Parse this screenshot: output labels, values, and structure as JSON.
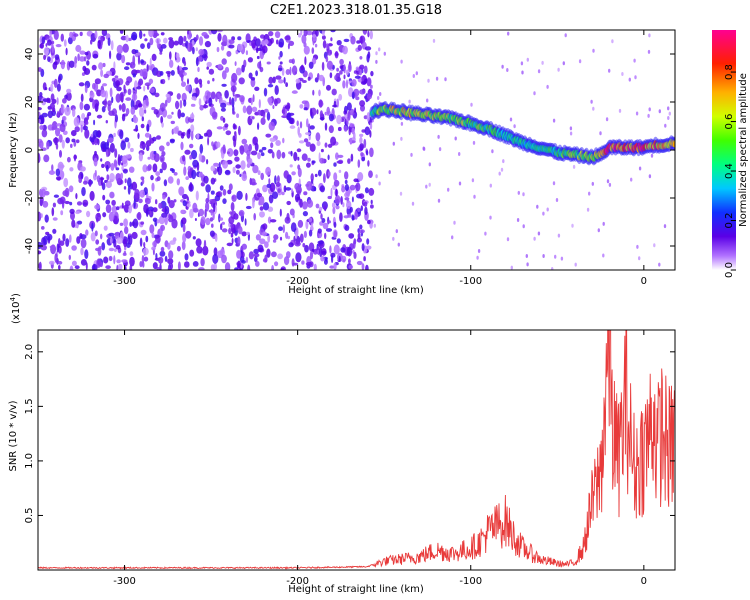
{
  "figure_title": "C2E1.2023.318.01.35.G18",
  "chart_data": [
    {
      "type": "heatmap",
      "xlabel": "Height of straight line (km)",
      "ylabel": "Frequency (Hz)",
      "xlim": [
        -350,
        18
      ],
      "ylim": [
        -50,
        50
      ],
      "xticks": [
        -300,
        -200,
        -100,
        0
      ],
      "yticks": [
        -40,
        -20,
        0,
        20,
        40
      ],
      "colorbar": {
        "label": "Normalized spectral amplitude",
        "range": [
          0,
          0.97
        ],
        "ticks": [
          0.0,
          0.2,
          0.4,
          0.6,
          0.8
        ]
      },
      "noise_region_x": [
        -350,
        -157
      ],
      "ridge": {
        "x": [
          -157,
          -150,
          -140,
          -130,
          -120,
          -110,
          -100,
          -90,
          -80,
          -70,
          -60,
          -50,
          -40,
          -30,
          -25,
          -20,
          -15,
          -10,
          -5,
          0,
          5,
          10,
          18
        ],
        "frequency": [
          16,
          17,
          16,
          15,
          14,
          13,
          11,
          9,
          6,
          3,
          1,
          -1,
          -2,
          -3,
          -2,
          1,
          1,
          1,
          1,
          1,
          2,
          2,
          3
        ],
        "amplitude": [
          0.5,
          0.6,
          0.7,
          0.6,
          0.65,
          0.6,
          0.55,
          0.5,
          0.45,
          0.4,
          0.4,
          0.5,
          0.55,
          0.6,
          0.7,
          0.9,
          0.85,
          0.8,
          0.85,
          0.9,
          0.8,
          0.75,
          0.7
        ]
      }
    },
    {
      "type": "line",
      "xlabel": "Height of straight line (km)",
      "ylabel": "SNR (10 * v/v)",
      "y_multiplier": "(x10",
      "y_multiplier_exp": "4",
      "y_multiplier_close": ")",
      "xlim": [
        -350,
        18
      ],
      "ylim": [
        0,
        2.2
      ],
      "xticks": [
        -300,
        -200,
        -100,
        0
      ],
      "yticks": [
        0.5,
        1.0,
        1.5,
        2.0
      ],
      "series": [
        {
          "color": "#e83a3a",
          "x": [
            -350,
            -300,
            -250,
            -200,
            -160,
            -150,
            -140,
            -130,
            -120,
            -110,
            -100,
            -95,
            -90,
            -85,
            -80,
            -75,
            -70,
            -65,
            -60,
            -55,
            -50,
            -45,
            -40,
            -35,
            -30,
            -25,
            -22,
            -20,
            -18,
            -15,
            -12,
            -10,
            -8,
            -5,
            -3,
            0,
            3,
            5,
            8,
            10,
            12,
            15,
            18
          ],
          "values": [
            0.02,
            0.02,
            0.02,
            0.02,
            0.03,
            0.08,
            0.1,
            0.12,
            0.18,
            0.15,
            0.2,
            0.25,
            0.35,
            0.4,
            0.45,
            0.3,
            0.2,
            0.15,
            0.1,
            0.08,
            0.06,
            0.05,
            0.07,
            0.2,
            0.6,
            0.9,
            1.6,
            2.2,
            1.3,
            1.0,
            1.3,
            1.7,
            1.2,
            0.9,
            1.0,
            1.1,
            1.2,
            1.5,
            1.1,
            1.3,
            1.2,
            1.1,
            1.2
          ]
        }
      ]
    }
  ]
}
